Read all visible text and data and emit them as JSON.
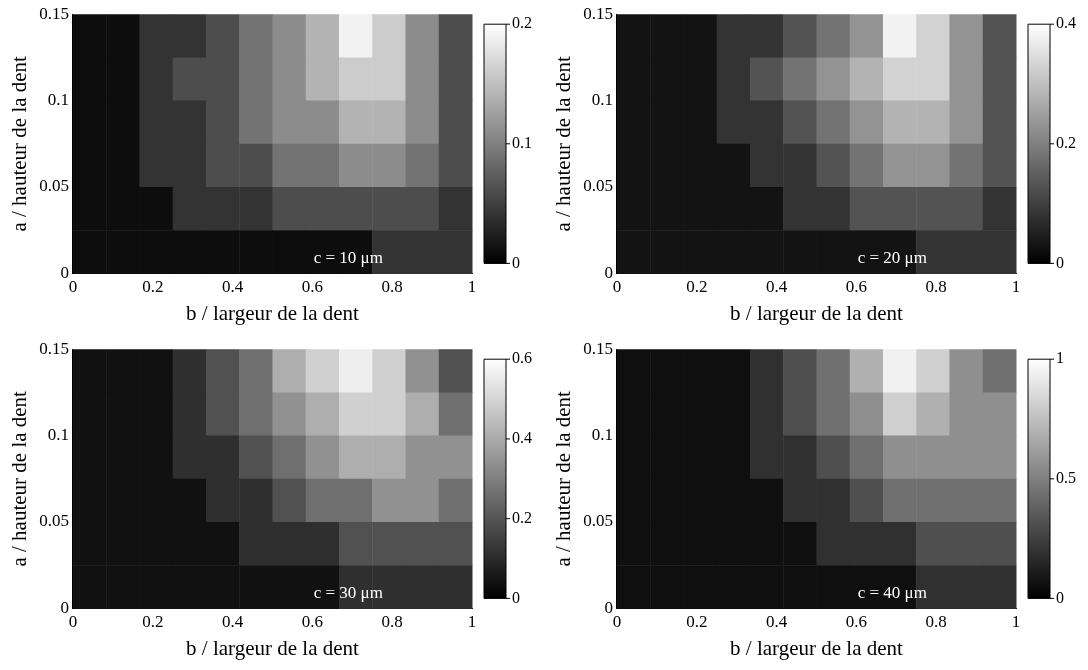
{
  "chart_data": [
    {
      "type": "heatmap",
      "xlabel": "b / largeur de la dent",
      "ylabel": "a / hauteur de la dent",
      "annotations": [
        "c = 10 μm"
      ],
      "xlim": [
        0,
        1
      ],
      "xticks": [
        0,
        0.2,
        0.4,
        0.6,
        0.8,
        1
      ],
      "ylim": [
        0,
        0.15
      ],
      "yticks": [
        0,
        0.05,
        0.1,
        0.15
      ],
      "clim": [
        0,
        0.2
      ],
      "cticks": [
        0,
        0.1,
        0.2
      ],
      "cells": [
        [
          0.01,
          0.01,
          0.04,
          0.04,
          0.06,
          0.09,
          0.11,
          0.14,
          0.19,
          0.16,
          0.11,
          0.06
        ],
        [
          0.01,
          0.01,
          0.04,
          0.06,
          0.06,
          0.09,
          0.11,
          0.14,
          0.16,
          0.16,
          0.11,
          0.06
        ],
        [
          0.01,
          0.01,
          0.04,
          0.04,
          0.06,
          0.09,
          0.11,
          0.11,
          0.14,
          0.14,
          0.11,
          0.06
        ],
        [
          0.01,
          0.01,
          0.04,
          0.04,
          0.06,
          0.06,
          0.09,
          0.09,
          0.11,
          0.11,
          0.09,
          0.06
        ],
        [
          0.01,
          0.01,
          0.01,
          0.04,
          0.04,
          0.04,
          0.06,
          0.06,
          0.06,
          0.06,
          0.06,
          0.04
        ],
        [
          0.01,
          0.01,
          0.01,
          0.01,
          0.01,
          0.01,
          0.01,
          0.01,
          0.01,
          0.04,
          0.04,
          0.04
        ]
      ]
    },
    {
      "type": "heatmap",
      "xlabel": "b / largeur de la dent",
      "ylabel": "a / hauteur de la dent",
      "annotations": [
        "c = 20 μm"
      ],
      "xlim": [
        0,
        1
      ],
      "xticks": [
        0,
        0.2,
        0.4,
        0.6,
        0.8,
        1
      ],
      "ylim": [
        0,
        0.15
      ],
      "yticks": [
        0,
        0.05,
        0.1,
        0.15
      ],
      "clim": [
        0,
        0.4
      ],
      "cticks": [
        0,
        0.2,
        0.4
      ],
      "cells": [
        [
          0.03,
          0.03,
          0.03,
          0.08,
          0.08,
          0.13,
          0.18,
          0.23,
          0.38,
          0.33,
          0.23,
          0.13
        ],
        [
          0.03,
          0.03,
          0.03,
          0.08,
          0.13,
          0.18,
          0.23,
          0.28,
          0.33,
          0.33,
          0.23,
          0.13
        ],
        [
          0.03,
          0.03,
          0.03,
          0.08,
          0.08,
          0.13,
          0.18,
          0.23,
          0.28,
          0.28,
          0.23,
          0.13
        ],
        [
          0.03,
          0.03,
          0.03,
          0.03,
          0.08,
          0.08,
          0.13,
          0.18,
          0.23,
          0.23,
          0.18,
          0.13
        ],
        [
          0.03,
          0.03,
          0.03,
          0.03,
          0.03,
          0.08,
          0.08,
          0.13,
          0.13,
          0.13,
          0.13,
          0.08
        ],
        [
          0.03,
          0.03,
          0.03,
          0.03,
          0.03,
          0.03,
          0.03,
          0.03,
          0.03,
          0.08,
          0.08,
          0.08
        ]
      ]
    },
    {
      "type": "heatmap",
      "xlabel": "b / largeur de la dent",
      "ylabel": "a / hauteur de la dent",
      "annotations": [
        "c = 30 μm"
      ],
      "xlim": [
        0,
        1
      ],
      "xticks": [
        0,
        0.2,
        0.4,
        0.6,
        0.8,
        1
      ],
      "ylim": [
        0,
        0.15
      ],
      "yticks": [
        0,
        0.05,
        0.1,
        0.15
      ],
      "clim": [
        0,
        0.6
      ],
      "cticks": [
        0,
        0.2,
        0.4,
        0.6
      ],
      "cells": [
        [
          0.04,
          0.04,
          0.04,
          0.11,
          0.19,
          0.26,
          0.41,
          0.49,
          0.56,
          0.49,
          0.34,
          0.19
        ],
        [
          0.04,
          0.04,
          0.04,
          0.11,
          0.19,
          0.26,
          0.34,
          0.41,
          0.49,
          0.49,
          0.41,
          0.26
        ],
        [
          0.04,
          0.04,
          0.04,
          0.11,
          0.11,
          0.19,
          0.26,
          0.34,
          0.41,
          0.41,
          0.34,
          0.34
        ],
        [
          0.04,
          0.04,
          0.04,
          0.04,
          0.11,
          0.11,
          0.19,
          0.26,
          0.26,
          0.34,
          0.34,
          0.26
        ],
        [
          0.04,
          0.04,
          0.04,
          0.04,
          0.04,
          0.11,
          0.11,
          0.11,
          0.19,
          0.19,
          0.19,
          0.19
        ],
        [
          0.04,
          0.04,
          0.04,
          0.04,
          0.04,
          0.04,
          0.04,
          0.04,
          0.11,
          0.11,
          0.11,
          0.11
        ]
      ]
    },
    {
      "type": "heatmap",
      "xlabel": "b / largeur de la dent",
      "ylabel": "a / hauteur de la dent",
      "annotations": [
        "c = 40 μm"
      ],
      "xlim": [
        0,
        1
      ],
      "xticks": [
        0,
        0.2,
        0.4,
        0.6,
        0.8,
        1
      ],
      "ylim": [
        0,
        0.15
      ],
      "yticks": [
        0,
        0.05,
        0.1,
        0.15
      ],
      "clim": [
        0,
        1
      ],
      "cticks": [
        0,
        0.5,
        1
      ],
      "cells": [
        [
          0.06,
          0.06,
          0.06,
          0.06,
          0.19,
          0.31,
          0.44,
          0.69,
          0.94,
          0.81,
          0.56,
          0.44
        ],
        [
          0.06,
          0.06,
          0.06,
          0.06,
          0.19,
          0.31,
          0.44,
          0.56,
          0.81,
          0.69,
          0.56,
          0.56
        ],
        [
          0.06,
          0.06,
          0.06,
          0.06,
          0.19,
          0.19,
          0.31,
          0.44,
          0.56,
          0.56,
          0.56,
          0.56
        ],
        [
          0.06,
          0.06,
          0.06,
          0.06,
          0.06,
          0.19,
          0.19,
          0.31,
          0.44,
          0.44,
          0.44,
          0.44
        ],
        [
          0.06,
          0.06,
          0.06,
          0.06,
          0.06,
          0.06,
          0.19,
          0.19,
          0.19,
          0.31,
          0.31,
          0.31
        ],
        [
          0.06,
          0.06,
          0.06,
          0.06,
          0.06,
          0.06,
          0.06,
          0.06,
          0.06,
          0.19,
          0.19,
          0.19
        ]
      ]
    }
  ]
}
